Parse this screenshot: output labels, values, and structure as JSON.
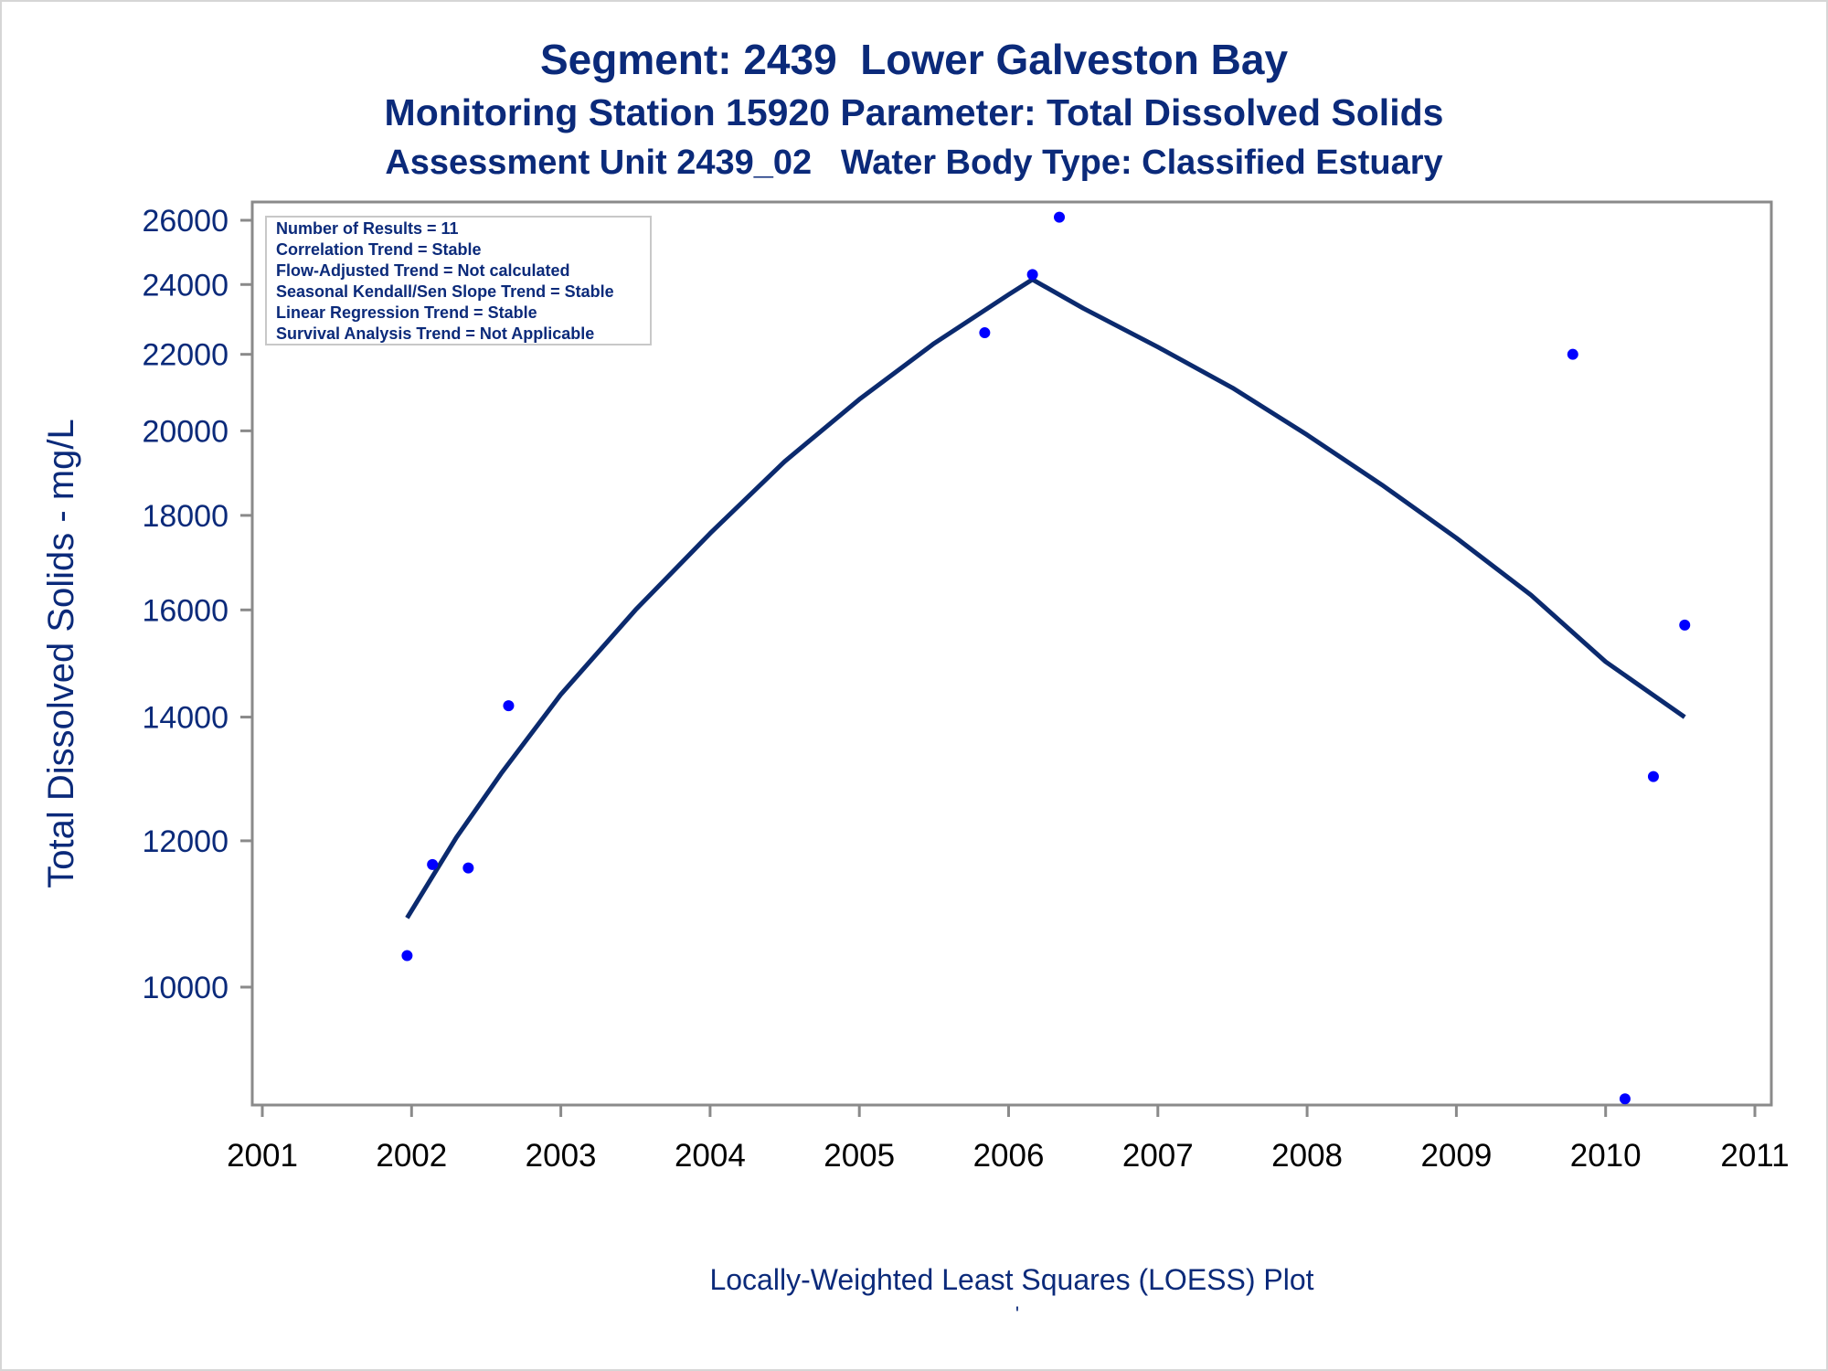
{
  "titles": {
    "line1": "Segment: 2439  Lower Galveston Bay",
    "line2": "Monitoring Station 15920 Parameter: Total Dissolved Solids",
    "line3": "Assessment Unit 2439_02   Water Body Type: Classified Estuary"
  },
  "footer": {
    "caption": "Locally-Weighted Least Squares (LOESS) Plot",
    "mark": "'"
  },
  "stats_box": [
    "Number of Results = 11",
    "Correlation Trend = Stable",
    "Flow-Adjusted Trend = Not calculated",
    "Seasonal Kendall/Sen Slope Trend = Stable",
    "Linear Regression Trend = Stable",
    "Survival Analysis Trend = Not Applicable"
  ],
  "colors": {
    "text": "#0b2a7a",
    "points": "#0000ff",
    "curve": "#0b2a6e",
    "axis": "#8a8a8a"
  },
  "chart_data": {
    "type": "scatter",
    "ylabel": "Total Dissolved Solids - mg/L",
    "xlabel": "Locally-Weighted Least Squares (LOESS) Plot",
    "y_scale": "log",
    "xlim": [
      2001,
      2011
    ],
    "ylim": [
      8600,
      26500
    ],
    "x_ticks": [
      2001,
      2002,
      2003,
      2004,
      2005,
      2006,
      2007,
      2008,
      2009,
      2010,
      2011
    ],
    "y_ticks": [
      10000,
      12000,
      14000,
      16000,
      18000,
      20000,
      22000,
      24000,
      26000
    ],
    "grid": false,
    "points": [
      {
        "x": 2001.97,
        "y": 10400
      },
      {
        "x": 2002.14,
        "y": 11650
      },
      {
        "x": 2002.38,
        "y": 11600
      },
      {
        "x": 2002.65,
        "y": 14200
      },
      {
        "x": 2005.84,
        "y": 22600
      },
      {
        "x": 2006.16,
        "y": 24300
      },
      {
        "x": 2006.34,
        "y": 26100
      },
      {
        "x": 2009.78,
        "y": 22000
      },
      {
        "x": 2010.13,
        "y": 8700
      },
      {
        "x": 2010.32,
        "y": 13000
      },
      {
        "x": 2010.53,
        "y": 15700
      }
    ],
    "loess_curve": [
      {
        "x": 2001.97,
        "y": 10900
      },
      {
        "x": 2002.3,
        "y": 12050
      },
      {
        "x": 2002.6,
        "y": 13050
      },
      {
        "x": 2003.0,
        "y": 14400
      },
      {
        "x": 2003.5,
        "y": 16000
      },
      {
        "x": 2004.0,
        "y": 17600
      },
      {
        "x": 2004.5,
        "y": 19250
      },
      {
        "x": 2005.0,
        "y": 20800
      },
      {
        "x": 2005.5,
        "y": 22300
      },
      {
        "x": 2006.0,
        "y": 23700
      },
      {
        "x": 2006.16,
        "y": 24150
      },
      {
        "x": 2006.5,
        "y": 23300
      },
      {
        "x": 2007.0,
        "y": 22200
      },
      {
        "x": 2007.5,
        "y": 21100
      },
      {
        "x": 2008.0,
        "y": 19900
      },
      {
        "x": 2008.5,
        "y": 18700
      },
      {
        "x": 2009.0,
        "y": 17500
      },
      {
        "x": 2009.5,
        "y": 16300
      },
      {
        "x": 2010.0,
        "y": 15000
      },
      {
        "x": 2010.53,
        "y": 14000
      }
    ]
  }
}
